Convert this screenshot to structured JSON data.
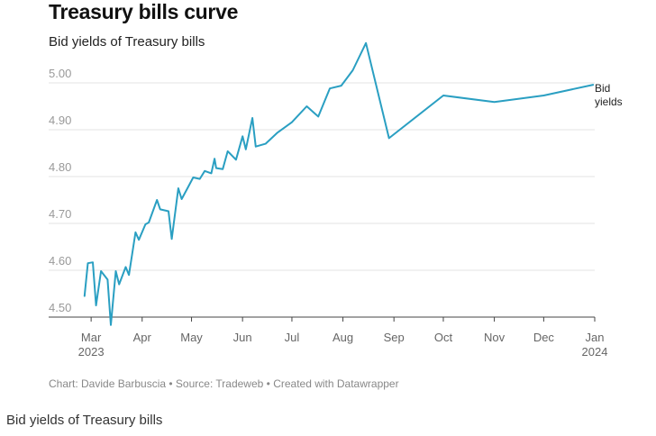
{
  "title": "Treasury bills curve",
  "subtitle": "Bid yields of Treasury bills",
  "footer": "Chart: Davide Barbuscia • Source: Tradeweb • Created with Datawrapper",
  "caption": "Bid yields of Treasury bills",
  "colors": {
    "line": "#2a9fc2",
    "grid": "#e3e3e3",
    "tick_text": "#999999"
  },
  "chart_data": {
    "type": "line",
    "title": "Treasury bills curve",
    "subtitle": "Bid yields of Treasury bills",
    "xlabel": "",
    "ylabel": "",
    "ylim": [
      4.5,
      5.05
    ],
    "xlim": [
      "2023-02-24",
      "2024-01-01"
    ],
    "yticks": [
      "4.50",
      "4.60",
      "4.70",
      "4.80",
      "4.90",
      "5.00"
    ],
    "xticks": [
      {
        "label": "Mar",
        "sublabel": "2023",
        "date": "2023-03-01"
      },
      {
        "label": "Apr",
        "sublabel": "",
        "date": "2023-04-01"
      },
      {
        "label": "May",
        "sublabel": "",
        "date": "2023-05-01"
      },
      {
        "label": "Jun",
        "sublabel": "",
        "date": "2023-06-01"
      },
      {
        "label": "Jul",
        "sublabel": "",
        "date": "2023-07-01"
      },
      {
        "label": "Aug",
        "sublabel": "",
        "date": "2023-08-01"
      },
      {
        "label": "Sep",
        "sublabel": "",
        "date": "2023-09-01"
      },
      {
        "label": "Oct",
        "sublabel": "",
        "date": "2023-10-01"
      },
      {
        "label": "Nov",
        "sublabel": "",
        "date": "2023-11-01"
      },
      {
        "label": "Dec",
        "sublabel": "",
        "date": "2023-12-01"
      },
      {
        "label": "Jan",
        "sublabel": "2024",
        "date": "2024-01-01"
      }
    ],
    "grid": true,
    "series": [
      {
        "name": "Bid yields",
        "points": [
          [
            "2023-02-25",
            4.545
          ],
          [
            "2023-02-27",
            4.615
          ],
          [
            "2023-03-02",
            4.617
          ],
          [
            "2023-03-04",
            4.525
          ],
          [
            "2023-03-07",
            4.598
          ],
          [
            "2023-03-11",
            4.58
          ],
          [
            "2023-03-13",
            4.483
          ],
          [
            "2023-03-16",
            4.598
          ],
          [
            "2023-03-18",
            4.57
          ],
          [
            "2023-03-22",
            4.607
          ],
          [
            "2023-03-24",
            4.59
          ],
          [
            "2023-03-28",
            4.681
          ],
          [
            "2023-03-30",
            4.665
          ],
          [
            "2023-04-03",
            4.698
          ],
          [
            "2023-04-05",
            4.702
          ],
          [
            "2023-04-10",
            4.75
          ],
          [
            "2023-04-12",
            4.73
          ],
          [
            "2023-04-17",
            4.726
          ],
          [
            "2023-04-19",
            4.667
          ],
          [
            "2023-04-23",
            4.775
          ],
          [
            "2023-04-25",
            4.752
          ],
          [
            "2023-04-29",
            4.778
          ],
          [
            "2023-05-02",
            4.798
          ],
          [
            "2023-05-06",
            4.795
          ],
          [
            "2023-05-09",
            4.812
          ],
          [
            "2023-05-13",
            4.807
          ],
          [
            "2023-05-15",
            4.838
          ],
          [
            "2023-05-16",
            4.818
          ],
          [
            "2023-05-20",
            4.816
          ],
          [
            "2023-05-23",
            4.854
          ],
          [
            "2023-05-28",
            4.836
          ],
          [
            "2023-06-01",
            4.886
          ],
          [
            "2023-06-03",
            4.858
          ],
          [
            "2023-06-07",
            4.925
          ],
          [
            "2023-06-09",
            4.864
          ],
          [
            "2023-06-15",
            4.87
          ],
          [
            "2023-06-22",
            4.893
          ],
          [
            "2023-07-01",
            4.916
          ],
          [
            "2023-07-10",
            4.95
          ],
          [
            "2023-07-17",
            4.928
          ],
          [
            "2023-07-24",
            4.988
          ],
          [
            "2023-07-31",
            4.994
          ],
          [
            "2023-08-07",
            5.027
          ],
          [
            "2023-08-15",
            5.085
          ],
          [
            "2023-08-29",
            4.882
          ],
          [
            "2023-10-01",
            4.973
          ],
          [
            "2023-11-01",
            4.959
          ],
          [
            "2023-12-01",
            4.973
          ],
          [
            "2023-12-31",
            4.996
          ]
        ]
      }
    ]
  }
}
